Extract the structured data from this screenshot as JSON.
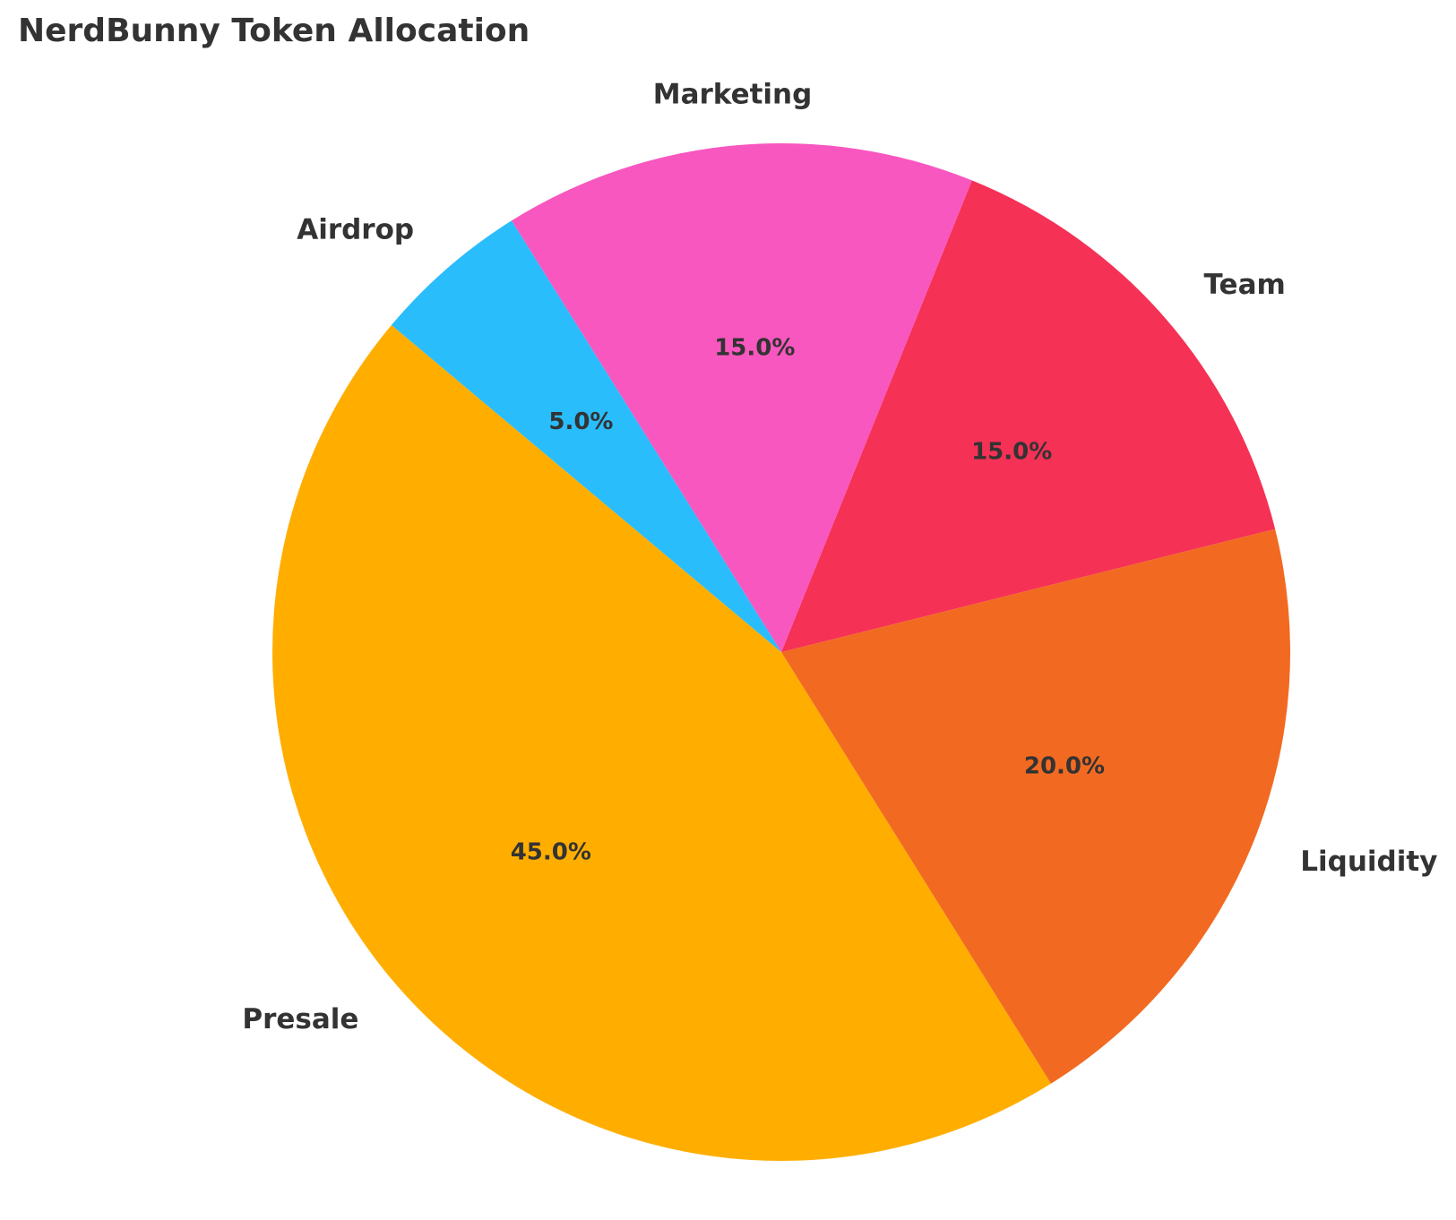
{
  "chart_data": {
    "type": "pie",
    "title": "NerdBunny Token Allocation",
    "categories": [
      "Presale",
      "Liquidity",
      "Team",
      "Marketing",
      "Airdrop"
    ],
    "values": [
      45,
      20,
      15,
      15,
      5
    ],
    "value_labels": [
      "45.0%",
      "20.0%",
      "15.0%",
      "15.0%",
      "5.0%"
    ],
    "colors": [
      "#FFAE00",
      "#F26A21",
      "#F53155",
      "#F857BF",
      "#29BDFC"
    ],
    "start_angle_deg": 140,
    "direction": "counterclockwise",
    "legend": "none"
  }
}
